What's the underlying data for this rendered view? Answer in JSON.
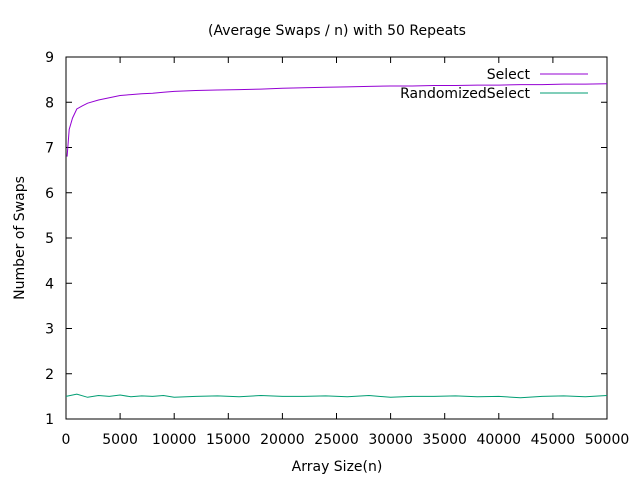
{
  "chart_data": {
    "type": "line",
    "title": "(Average Swaps / n) with 50 Repeats",
    "xlabel": "Array Size(n)",
    "ylabel": "Number of Swaps",
    "xlim": [
      0,
      50000
    ],
    "ylim": [
      1,
      9
    ],
    "xticks": [
      0,
      5000,
      10000,
      15000,
      20000,
      25000,
      30000,
      35000,
      40000,
      45000,
      50000
    ],
    "yticks": [
      1,
      2,
      3,
      4,
      5,
      6,
      7,
      8,
      9
    ],
    "grid": false,
    "legend_position": "top-right",
    "series": [
      {
        "name": "Select",
        "color": "#9400d3",
        "x": [
          100,
          300,
          600,
          1000,
          1500,
          2000,
          3000,
          4000,
          5000,
          6000,
          7000,
          8000,
          9000,
          10000,
          12000,
          14000,
          16000,
          18000,
          20000,
          22000,
          24000,
          26000,
          28000,
          30000,
          32000,
          34000,
          36000,
          38000,
          40000,
          42000,
          44000,
          46000,
          48000,
          50000
        ],
        "values": [
          6.8,
          7.4,
          7.65,
          7.85,
          7.92,
          7.98,
          8.05,
          8.1,
          8.15,
          8.17,
          8.19,
          8.2,
          8.22,
          8.24,
          8.26,
          8.27,
          8.28,
          8.29,
          8.31,
          8.32,
          8.33,
          8.34,
          8.35,
          8.36,
          8.36,
          8.37,
          8.37,
          8.38,
          8.38,
          8.39,
          8.39,
          8.4,
          8.4,
          8.41
        ]
      },
      {
        "name": "RandomizedSelect",
        "color": "#009e73",
        "x": [
          0,
          1000,
          2000,
          3000,
          4000,
          5000,
          6000,
          7000,
          8000,
          9000,
          10000,
          12000,
          14000,
          16000,
          18000,
          20000,
          22000,
          24000,
          26000,
          28000,
          30000,
          32000,
          34000,
          36000,
          38000,
          40000,
          42000,
          44000,
          46000,
          48000,
          50000
        ],
        "values": [
          1.5,
          1.55,
          1.48,
          1.52,
          1.5,
          1.53,
          1.49,
          1.51,
          1.5,
          1.52,
          1.48,
          1.5,
          1.51,
          1.49,
          1.52,
          1.5,
          1.5,
          1.51,
          1.49,
          1.52,
          1.48,
          1.5,
          1.5,
          1.51,
          1.49,
          1.5,
          1.47,
          1.5,
          1.51,
          1.49,
          1.52
        ]
      }
    ]
  }
}
